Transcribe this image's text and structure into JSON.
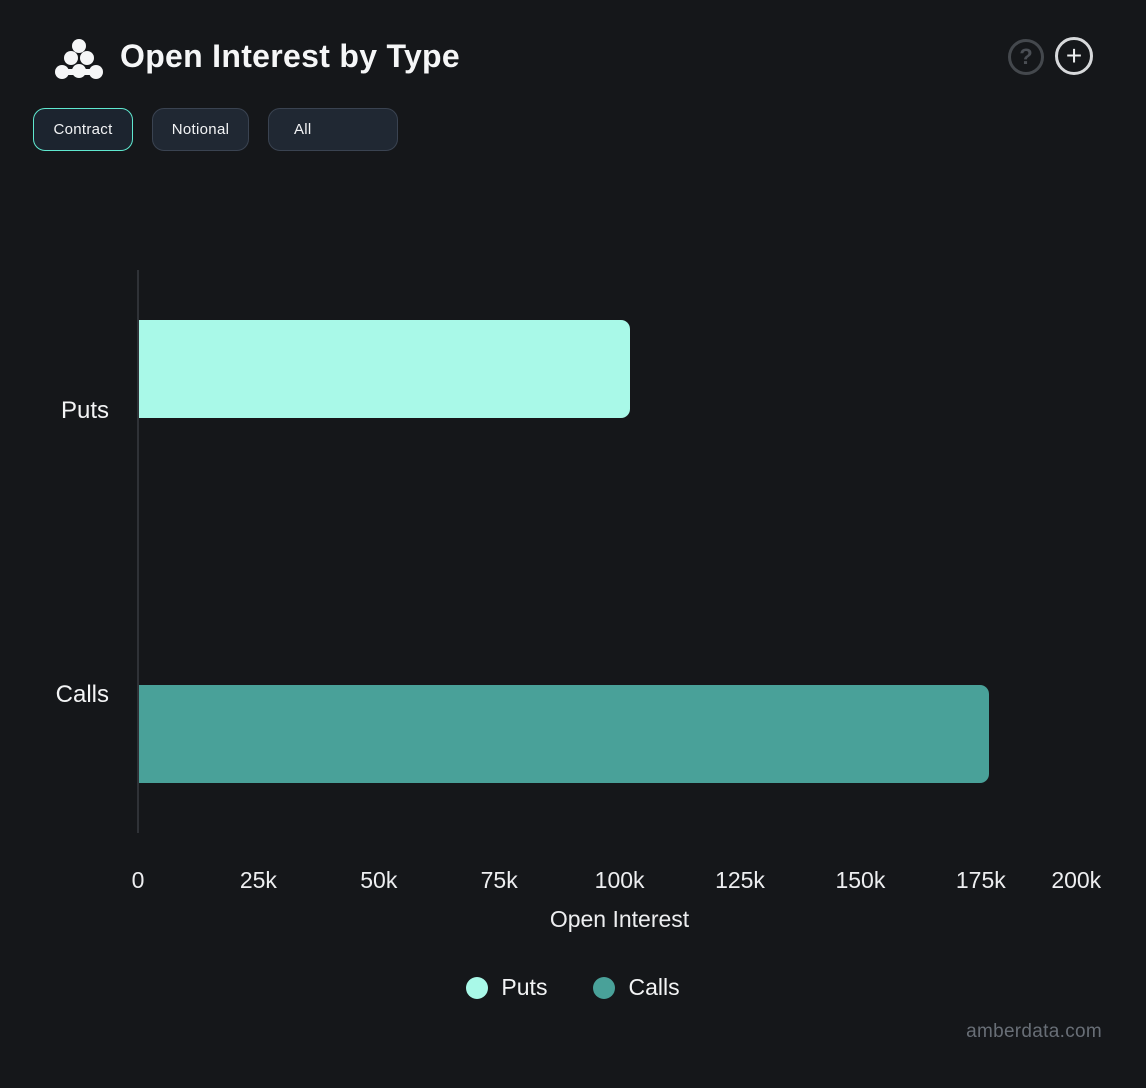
{
  "header": {
    "title": "Open Interest by Type",
    "help_glyph": "?",
    "add_glyph": "+"
  },
  "toolbar": {
    "buttons": [
      {
        "label": "Contract",
        "active": true
      },
      {
        "label": "Notional",
        "active": false
      },
      {
        "label": "All",
        "active": false
      }
    ]
  },
  "chart_data": {
    "type": "bar",
    "orientation": "horizontal",
    "title": "Open Interest by Type",
    "categories": [
      "Puts",
      "Calls"
    ],
    "values": [
      102000,
      176500
    ],
    "colors": [
      "#a9f9e8",
      "#49a199"
    ],
    "xlabel": "Open Interest",
    "xlim": [
      0,
      200000
    ],
    "xticks": [
      0,
      25000,
      50000,
      75000,
      100000,
      125000,
      150000,
      175000,
      200000
    ],
    "xtick_labels": [
      "0",
      "25k",
      "50k",
      "75k",
      "100k",
      "125k",
      "150k",
      "175k",
      "200k"
    ],
    "grid": false,
    "legend_position": "bottom",
    "legend": [
      {
        "label": "Puts",
        "color": "#a9f9e8"
      },
      {
        "label": "Calls",
        "color": "#49a199"
      }
    ]
  },
  "watermark": "amberdata.com",
  "colors": {
    "background": "#15171a",
    "accent_active_border": "#5fe8cf",
    "puts_bar": "#a9f9e8",
    "calls_bar": "#49a199",
    "axis_line": "#2f3237"
  }
}
